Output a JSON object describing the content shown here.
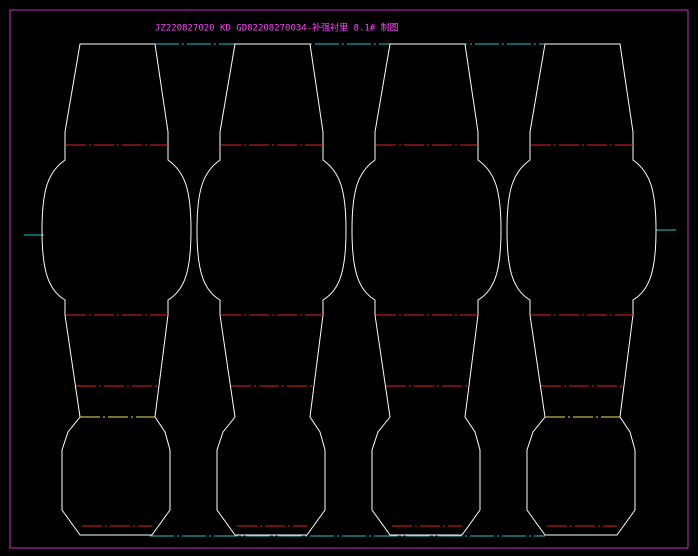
{
  "header": {
    "title": "JZ220827020 KD  GD82208270034-补强衬里  8.1# 制图"
  }
}
